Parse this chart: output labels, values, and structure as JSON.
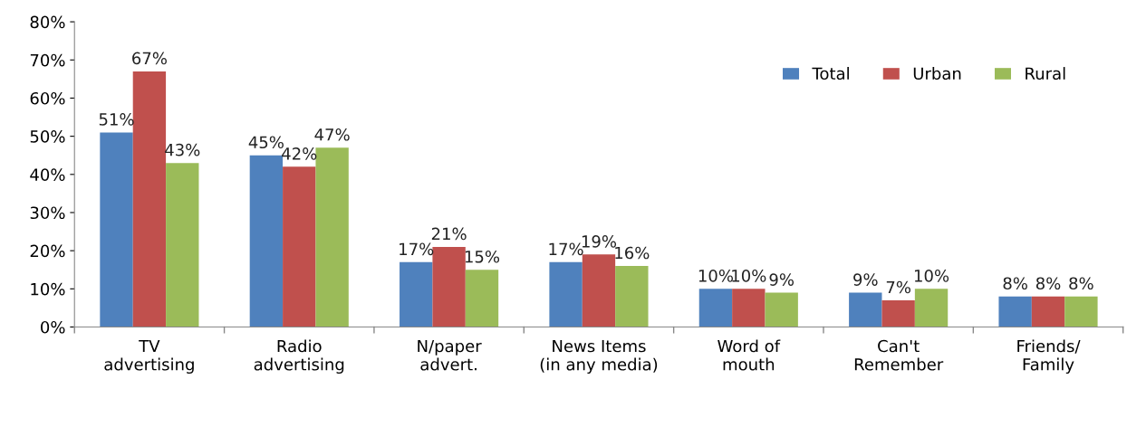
{
  "chart_data": {
    "type": "bar",
    "categories": [
      "TV\nadvertising",
      "Radio\nadvertising",
      "N/paper\nadvert.",
      "News Items\n(in any media)",
      "Word of\nmouth",
      "Can't\nRemember",
      "Friends/\nFamily"
    ],
    "series": [
      {
        "name": "Total",
        "color": "#4f81bd",
        "values": [
          51,
          45,
          17,
          17,
          10,
          9,
          8
        ],
        "value_labels": [
          "51%",
          "45%",
          "17%",
          "17%",
          "10%",
          "9%",
          "8%"
        ]
      },
      {
        "name": "Urban",
        "color": "#c0504d",
        "values": [
          67,
          42,
          21,
          19,
          10,
          7,
          8
        ],
        "value_labels": [
          "67%",
          "42%",
          "21%",
          "19%",
          "10%",
          "7%",
          "8%"
        ]
      },
      {
        "name": "Rural",
        "color": "#9bbb59",
        "values": [
          43,
          47,
          15,
          16,
          9,
          10,
          8
        ],
        "value_labels": [
          "43%",
          "47%",
          "15%",
          "16%",
          "9%",
          "10%",
          "8%"
        ]
      }
    ],
    "ylim": [
      0,
      80
    ],
    "yticks": [
      {
        "value": 0,
        "label": "0%"
      },
      {
        "value": 10,
        "label": "10%"
      },
      {
        "value": 20,
        "label": "20%"
      },
      {
        "value": 30,
        "label": "30%"
      },
      {
        "value": 40,
        "label": "40%"
      },
      {
        "value": 50,
        "label": "50%"
      },
      {
        "value": 60,
        "label": "60%"
      },
      {
        "value": 70,
        "label": "70%"
      },
      {
        "value": 80,
        "label": "80%"
      }
    ],
    "grid": false,
    "legend": "top right"
  }
}
